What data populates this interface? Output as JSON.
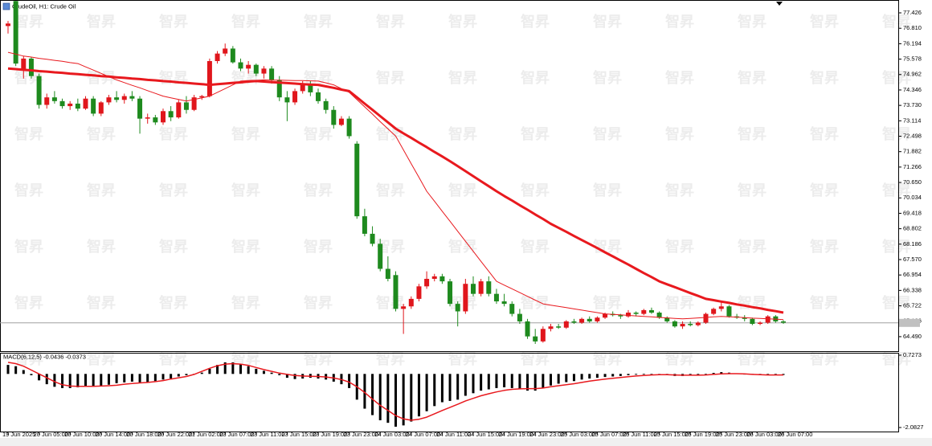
{
  "watermark": "智昇",
  "chart_data": [
    {
      "type": "candlestick",
      "title": "CrudeOil, H1: Crude Oil",
      "up_color": "#e0161c",
      "down_color": "#1e8a1e",
      "categories": [
        "19 Jun 2025",
        null,
        null,
        null,
        "20 Jun 05:00",
        null,
        null,
        null,
        "20 Jun 10:00",
        null,
        null,
        null,
        "20 Jun 14:00",
        null,
        null,
        null,
        "20 Jun 18:00",
        null,
        null,
        null,
        "20 Jun 22:00",
        null,
        null,
        null,
        "21 Jun 02:00",
        null,
        null,
        null,
        "23 Jun 07:00",
        null,
        null,
        null,
        "23 Jun 11:00",
        null,
        null,
        null,
        "23 Jun 15:00",
        null,
        null,
        null,
        "23 Jun 19:00",
        null,
        null,
        null,
        "23 Jun 23:00",
        null,
        null,
        null,
        "24 Jun 03:00",
        null,
        null,
        null,
        "24 Jun 07:00",
        null,
        null,
        null,
        "24 Jun 11:00",
        null,
        null,
        null,
        "24 Jun 15:00",
        null,
        null,
        null,
        "24 Jun 19:00",
        null,
        null,
        null,
        "24 Jun 23:00",
        null,
        null,
        null,
        "25 Jun 03:00",
        null,
        null,
        null,
        "25 Jun 07:00",
        null,
        null,
        null,
        "25 Jun 11:00",
        null,
        null,
        null,
        "25 Jun 15:00",
        null,
        null,
        null,
        "25 Jun 19:00",
        null,
        null,
        null,
        "25 Jun 23:00",
        null,
        null,
        null,
        "26 Jun 03:00",
        null,
        null,
        null,
        "26 Jun 07:00"
      ],
      "open": [
        76.9,
        77.9,
        75.15,
        75.6,
        74.9,
        73.75,
        74.05,
        73.9,
        73.7,
        73.8,
        73.6,
        74.0,
        73.4,
        73.85,
        74.05,
        73.95,
        74.1,
        74.0,
        73.2,
        73.25,
        73.05,
        73.5,
        73.25,
        73.85,
        73.55,
        74.05,
        74.1,
        75.5,
        75.8,
        76.0,
        75.45,
        75.2,
        75.35,
        75.0,
        75.2,
        74.75,
        74.05,
        73.85,
        74.3,
        74.55,
        74.25,
        73.9,
        73.55,
        72.95,
        73.2,
        72.2,
        69.3,
        68.6,
        68.2,
        67.2,
        66.95,
        65.6,
        65.7,
        66.0,
        66.5,
        66.8,
        66.9,
        66.7,
        65.8,
        65.5,
        66.6,
        66.2,
        66.7,
        66.2,
        65.9,
        65.8,
        65.4,
        65.1,
        64.5,
        64.3,
        64.8,
        64.9,
        64.85,
        65.1,
        65.05,
        65.2,
        65.1,
        65.25,
        65.4,
        65.35,
        65.3,
        65.45,
        65.4,
        65.55,
        65.45,
        65.25,
        65.1,
        64.9,
        65.0,
        64.95,
        65.05,
        65.4,
        65.6,
        65.7,
        65.3,
        65.25,
        65.2,
        65.0,
        65.05,
        65.3,
        65.1
      ],
      "high": [
        77.1,
        77.9,
        75.7,
        75.65,
        75.0,
        74.2,
        74.3,
        74.0,
        73.9,
        74.0,
        74.1,
        74.1,
        73.9,
        74.15,
        74.3,
        74.2,
        74.3,
        74.1,
        73.4,
        73.35,
        73.6,
        73.7,
        73.95,
        74.1,
        74.15,
        74.15,
        75.6,
        75.9,
        76.2,
        76.1,
        75.6,
        75.5,
        75.4,
        75.3,
        75.3,
        74.9,
        74.3,
        74.4,
        74.7,
        74.7,
        74.4,
        74.0,
        73.7,
        73.3,
        73.3,
        72.3,
        69.6,
        68.9,
        68.4,
        67.7,
        67.1,
        65.8,
        66.1,
        66.6,
        67.1,
        67.0,
        67.0,
        66.8,
        65.9,
        66.8,
        66.9,
        66.8,
        66.9,
        66.4,
        66.2,
        65.9,
        65.6,
        65.2,
        64.8,
        64.9,
        65.0,
        65.0,
        65.15,
        65.2,
        65.25,
        65.3,
        65.3,
        65.45,
        65.5,
        65.4,
        65.55,
        65.5,
        65.6,
        65.65,
        65.5,
        65.3,
        65.15,
        65.1,
        65.1,
        65.1,
        65.45,
        65.65,
        65.9,
        65.75,
        65.4,
        65.35,
        65.25,
        65.1,
        65.35,
        65.35,
        65.15
      ],
      "low": [
        76.6,
        75.3,
        74.8,
        74.8,
        73.6,
        73.6,
        73.8,
        73.6,
        73.55,
        73.5,
        73.55,
        73.3,
        73.3,
        73.75,
        73.85,
        73.8,
        73.9,
        72.6,
        73.0,
        72.95,
        72.95,
        73.1,
        73.2,
        73.4,
        73.5,
        73.95,
        74.05,
        75.4,
        75.7,
        75.4,
        75.1,
        75.0,
        74.9,
        74.8,
        74.6,
        73.9,
        73.1,
        73.75,
        74.2,
        74.1,
        73.8,
        73.4,
        72.8,
        72.9,
        72.4,
        69.2,
        68.5,
        68.1,
        67.1,
        66.7,
        65.5,
        64.6,
        65.6,
        65.9,
        66.4,
        66.7,
        66.6,
        65.7,
        64.9,
        65.4,
        66.1,
        66.1,
        66.1,
        65.8,
        65.7,
        65.3,
        65.0,
        64.4,
        64.2,
        64.25,
        64.7,
        64.8,
        64.8,
        65.0,
        65.0,
        65.05,
        65.05,
        65.2,
        65.3,
        65.2,
        65.25,
        65.3,
        65.35,
        65.4,
        65.2,
        65.05,
        64.85,
        64.8,
        64.9,
        64.9,
        65.0,
        65.35,
        65.5,
        65.25,
        65.2,
        65.1,
        64.95,
        64.95,
        65.0,
        65.05,
        65.0
      ],
      "close": [
        77.0,
        75.4,
        75.6,
        74.9,
        73.75,
        74.05,
        73.9,
        73.7,
        73.8,
        73.6,
        74.0,
        73.4,
        73.85,
        74.05,
        73.95,
        74.1,
        74.0,
        73.2,
        73.25,
        73.05,
        73.5,
        73.25,
        73.85,
        73.55,
        74.05,
        74.1,
        75.5,
        75.8,
        76.0,
        75.45,
        75.2,
        75.35,
        75.0,
        75.2,
        74.75,
        74.05,
        73.85,
        74.3,
        74.55,
        74.25,
        73.9,
        73.55,
        72.95,
        73.2,
        72.5,
        69.3,
        68.6,
        68.2,
        67.2,
        66.8,
        65.6,
        65.7,
        66.0,
        66.5,
        66.8,
        66.9,
        66.7,
        65.8,
        65.5,
        66.6,
        66.2,
        66.7,
        66.2,
        65.9,
        65.8,
        65.4,
        65.1,
        64.5,
        64.3,
        64.8,
        64.9,
        64.85,
        65.1,
        65.05,
        65.2,
        65.1,
        65.25,
        65.4,
        65.35,
        65.3,
        65.45,
        65.4,
        65.55,
        65.45,
        65.25,
        65.1,
        64.9,
        65.0,
        64.95,
        65.05,
        65.4,
        65.6,
        65.7,
        65.3,
        65.25,
        65.2,
        65.0,
        65.05,
        65.3,
        65.1,
        65.05
      ],
      "series": [
        {
          "color": "#e8191e",
          "width": 3,
          "values": [
            75.2,
            75.18,
            75.15,
            75.13,
            75.1,
            75.08,
            75.05,
            75.03,
            75.0,
            74.98,
            74.95,
            74.93,
            74.9,
            74.88,
            74.85,
            74.83,
            74.8,
            74.78,
            74.75,
            74.73,
            74.7,
            74.68,
            74.65,
            74.63,
            74.6,
            74.58,
            74.55,
            74.58,
            74.6,
            74.63,
            74.65,
            74.68,
            74.7,
            74.68,
            74.66,
            74.64,
            74.62,
            74.6,
            74.58,
            74.56,
            74.55,
            74.49,
            74.43,
            74.36,
            74.3,
            74.05,
            73.8,
            73.55,
            73.3,
            73.05,
            72.8,
            72.61,
            72.43,
            72.24,
            72.06,
            71.87,
            71.69,
            71.5,
            71.3,
            71.1,
            70.9,
            70.7,
            70.5,
            70.3,
            70.11,
            69.93,
            69.74,
            69.56,
            69.37,
            69.19,
            69.0,
            68.84,
            68.68,
            68.51,
            68.35,
            68.19,
            68.03,
            67.86,
            67.7,
            67.53,
            67.37,
            67.2,
            67.03,
            66.87,
            66.7,
            66.58,
            66.47,
            66.35,
            66.23,
            66.12,
            66.0,
            65.95,
            65.89,
            65.84,
            65.78,
            65.73,
            65.67,
            65.62,
            65.56,
            65.51,
            65.45
          ]
        },
        {
          "color": "#e8191e",
          "width": 1,
          "values": [
            75.85,
            75.78,
            75.7,
            75.66,
            75.61,
            75.57,
            75.53,
            75.49,
            75.44,
            75.4,
            75.27,
            75.14,
            75.01,
            74.88,
            74.75,
            74.64,
            74.53,
            74.43,
            74.32,
            74.21,
            74.1,
            74.03,
            73.97,
            73.9,
            73.97,
            74.03,
            74.1,
            74.25,
            74.4,
            74.55,
            74.7,
            74.72,
            74.73,
            74.75,
            74.74,
            74.74,
            74.73,
            74.72,
            74.72,
            74.71,
            74.7,
            74.63,
            74.55,
            74.4,
            74.25,
            73.96,
            73.67,
            73.38,
            73.08,
            72.79,
            72.5,
            71.95,
            71.4,
            70.85,
            70.3,
            69.9,
            69.5,
            69.1,
            68.7,
            68.3,
            67.9,
            67.5,
            67.1,
            66.7,
            66.55,
            66.4,
            66.25,
            66.1,
            65.95,
            65.8,
            65.75,
            65.7,
            65.65,
            65.6,
            65.55,
            65.5,
            65.45,
            65.4,
            65.38,
            65.36,
            65.34,
            65.32,
            65.3,
            65.28,
            65.26,
            65.24,
            65.22,
            65.2,
            65.22,
            65.24,
            65.26,
            65.28,
            65.3,
            65.28,
            65.27,
            65.25,
            65.23,
            65.22,
            65.2,
            65.19,
            65.17
          ]
        }
      ],
      "price_line": 65.04,
      "ylim": [
        63.91,
        77.94
      ],
      "yticks": [
        77.426,
        {
          "value": 76.81,
          "label": "76.810"
        },
        76.194,
        75.578,
        74.962,
        74.346,
        {
          "value": 73.73,
          "label": "73.730"
        },
        73.114,
        72.498,
        71.882,
        71.266,
        {
          "value": 70.65,
          "label": "70.650"
        },
        70.034,
        69.418,
        68.802,
        68.186,
        {
          "value": 67.57,
          "label": "67.570"
        },
        66.954,
        66.338,
        65.722,
        65.106,
        {
          "value": 64.49,
          "label": "64.490"
        }
      ]
    },
    {
      "type": "macd",
      "title": "MACD(6,12,5) -0.0436 -0.0373",
      "hist_color": "#000000",
      "signal_color": "#e8191e",
      "values": [
        0.35,
        0.3,
        0.15,
        -0.05,
        -0.25,
        -0.4,
        -0.5,
        -0.55,
        -0.55,
        -0.52,
        -0.5,
        -0.5,
        -0.48,
        -0.42,
        -0.36,
        -0.33,
        -0.3,
        -0.33,
        -0.32,
        -0.28,
        -0.22,
        -0.18,
        -0.1,
        -0.05,
        0.0,
        0.05,
        0.2,
        0.35,
        0.45,
        0.45,
        0.38,
        0.3,
        0.2,
        0.12,
        0.05,
        -0.05,
        -0.15,
        -0.2,
        -0.18,
        -0.15,
        -0.18,
        -0.22,
        -0.3,
        -0.4,
        -0.55,
        -1.0,
        -1.35,
        -1.6,
        -1.8,
        -1.9,
        -2.05,
        -2.0,
        -1.85,
        -1.65,
        -1.45,
        -1.25,
        -1.1,
        -1.05,
        -1.0,
        -0.85,
        -0.75,
        -0.65,
        -0.6,
        -0.55,
        -0.52,
        -0.55,
        -0.6,
        -0.65,
        -0.65,
        -0.55,
        -0.45,
        -0.38,
        -0.32,
        -0.28,
        -0.22,
        -0.18,
        -0.15,
        -0.12,
        -0.1,
        -0.08,
        -0.05,
        -0.03,
        -0.02,
        0.0,
        -0.02,
        -0.05,
        -0.08,
        -0.08,
        -0.06,
        -0.04,
        0.0,
        0.04,
        0.07,
        0.05,
        0.02,
        -0.01,
        -0.03,
        -0.05,
        -0.04,
        -0.04,
        -0.04
      ],
      "signal": [
        0.45,
        0.4,
        0.3,
        0.15,
        0.0,
        -0.15,
        -0.3,
        -0.42,
        -0.47,
        -0.48,
        -0.48,
        -0.48,
        -0.47,
        -0.46,
        -0.44,
        -0.4,
        -0.37,
        -0.35,
        -0.33,
        -0.3,
        -0.26,
        -0.2,
        -0.15,
        -0.1,
        -0.02,
        0.1,
        0.22,
        0.32,
        0.38,
        0.4,
        0.38,
        0.33,
        0.25,
        0.17,
        0.1,
        0.03,
        -0.02,
        -0.06,
        -0.08,
        -0.09,
        -0.1,
        -0.12,
        -0.16,
        -0.22,
        -0.32,
        -0.5,
        -0.72,
        -0.98,
        -1.22,
        -1.42,
        -1.62,
        -1.75,
        -1.8,
        -1.76,
        -1.68,
        -1.55,
        -1.42,
        -1.3,
        -1.18,
        -1.05,
        -0.95,
        -0.85,
        -0.77,
        -0.7,
        -0.64,
        -0.6,
        -0.58,
        -0.57,
        -0.57,
        -0.55,
        -0.5,
        -0.46,
        -0.42,
        -0.38,
        -0.33,
        -0.28,
        -0.24,
        -0.2,
        -0.17,
        -0.14,
        -0.11,
        -0.08,
        -0.06,
        -0.04,
        -0.03,
        -0.03,
        -0.04,
        -0.05,
        -0.05,
        -0.05,
        -0.04,
        -0.02,
        0.0,
        0.01,
        0.01,
        0.0,
        -0.02,
        -0.03,
        -0.04,
        -0.04,
        -0.04
      ],
      "ylim": [
        -2.27,
        0.79
      ],
      "yticks": [
        0.7273,
        -2.0827
      ]
    }
  ]
}
